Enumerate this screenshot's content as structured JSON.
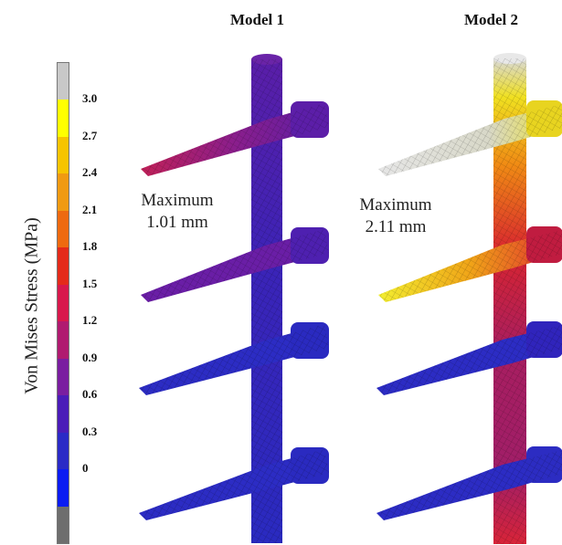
{
  "titles": {
    "model1": "Model 1",
    "model2": "Model 2"
  },
  "colorbar": {
    "label": "Von Mises Stress (MPa)",
    "ticks": [
      "3.0",
      "2.7",
      "2.4",
      "2.1",
      "1.8",
      "1.5",
      "1.2",
      "0.9",
      "0.6",
      "0.3",
      "0"
    ],
    "colors": [
      "#c8c8c8",
      "#ffff00",
      "#f7c400",
      "#f09a12",
      "#ee6a10",
      "#e42a1a",
      "#d8184c",
      "#b01a70",
      "#7a1ea0",
      "#4a1cb8",
      "#2a2ac6",
      "#0b1cf2",
      "#6e6e6e"
    ]
  },
  "annotations": {
    "model1": {
      "line1": "Maximum",
      "line2": "1.01 mm"
    },
    "model2": {
      "line1": "Maximum",
      "line2": "2.11 mm"
    }
  }
}
